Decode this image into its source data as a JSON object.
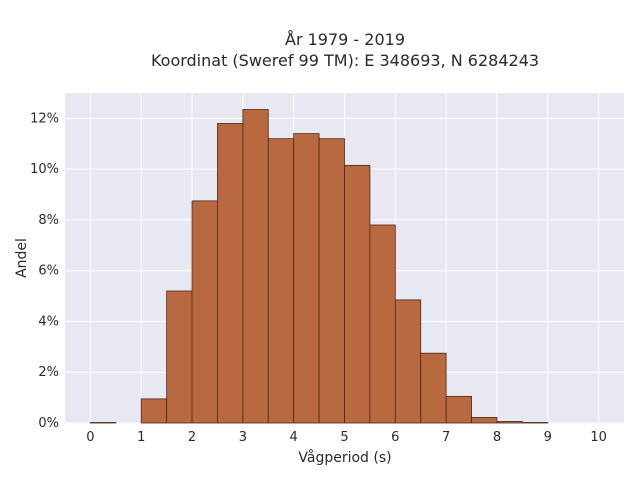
{
  "chart_data": {
    "type": "bar",
    "title": "År 1979 - 2019",
    "subtitle": "Koordinat (Sweref 99 TM): E 348693, N 6284243",
    "xlabel": "Vågperiod (s)",
    "ylabel": "Andel",
    "xlim": [
      -0.5,
      10.5
    ],
    "ylim": [
      0,
      13
    ],
    "x_ticks": [
      0,
      1,
      2,
      3,
      4,
      5,
      6,
      7,
      8,
      9,
      10
    ],
    "y_ticks": [
      0,
      2,
      4,
      6,
      8,
      10,
      12
    ],
    "y_tick_labels": [
      "0%",
      "2%",
      "4%",
      "6%",
      "8%",
      "10%",
      "12%"
    ],
    "bin_width": 0.5,
    "bins": [
      {
        "x0": 0.0,
        "value": 0.02
      },
      {
        "x0": 0.5,
        "value": 0.0
      },
      {
        "x0": 1.0,
        "value": 0.95
      },
      {
        "x0": 1.5,
        "value": 5.2
      },
      {
        "x0": 2.0,
        "value": 8.75
      },
      {
        "x0": 2.5,
        "value": 11.8
      },
      {
        "x0": 3.0,
        "value": 12.35
      },
      {
        "x0": 3.5,
        "value": 11.2
      },
      {
        "x0": 4.0,
        "value": 11.4
      },
      {
        "x0": 4.5,
        "value": 11.2
      },
      {
        "x0": 5.0,
        "value": 10.15
      },
      {
        "x0": 5.5,
        "value": 7.8
      },
      {
        "x0": 6.0,
        "value": 4.85
      },
      {
        "x0": 6.5,
        "value": 2.75
      },
      {
        "x0": 7.0,
        "value": 1.05
      },
      {
        "x0": 7.5,
        "value": 0.22
      },
      {
        "x0": 8.0,
        "value": 0.06
      },
      {
        "x0": 8.5,
        "value": 0.02
      }
    ],
    "grid": true,
    "colors": {
      "bar_fill": "#b8693f",
      "bar_stroke": "#4a2a1a",
      "plot_background": "#e8e8f2",
      "grid": "#ffffff"
    }
  }
}
